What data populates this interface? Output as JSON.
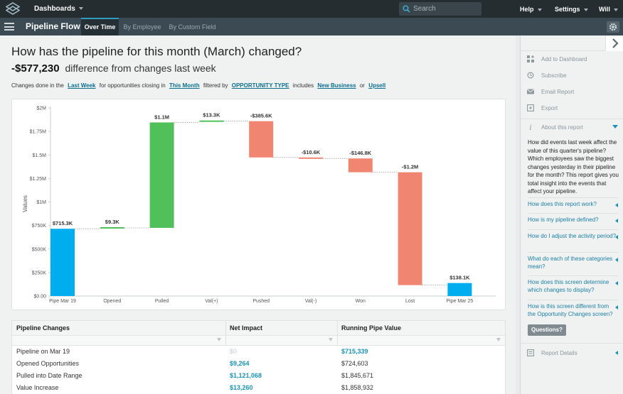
{
  "topbar": {
    "dashboards_label": "Dashboards",
    "search_placeholder": "Search",
    "help_label": "Help",
    "settings_label": "Settings",
    "user_label": "Will",
    "logo_icon": "stacked-diamond-logo"
  },
  "subbar": {
    "app_title": "Pipeline Flow",
    "tabs": [
      {
        "label": "Over Time",
        "active": true
      },
      {
        "label": "By Employee",
        "active": false
      },
      {
        "label": "By Custom Field",
        "active": false
      }
    ]
  },
  "report": {
    "question": "How has the pipeline for this month (March) changed?",
    "difference_value": "-$577,230",
    "difference_text": "difference from changes last week",
    "filters": {
      "t1": "Changes done in the",
      "l1": "Last Week",
      "t2": "for opportunities closing in",
      "l2": "This Month",
      "t3": "filtered by",
      "l3": "OPPORTUNITY TYPE",
      "t4": "includes",
      "l4": "New Business",
      "t5": "or",
      "l5": "Upsell"
    }
  },
  "chart_data": {
    "type": "bar",
    "subtype": "waterfall",
    "title": "",
    "xlabel": "",
    "ylabel": "Values",
    "ylim": [
      0,
      2000000
    ],
    "yticks": [
      "$0.00",
      "$250K",
      "$500K",
      "$750K",
      "$1M",
      "$1.25M",
      "$1.5M",
      "$1.75M",
      "$2M"
    ],
    "categories": [
      "Pipe Mar 19",
      "Opened",
      "Pulled",
      "Val(+)",
      "Pushed",
      "Val(-)",
      "Won",
      "Lost",
      "Pipe Mar 25"
    ],
    "values": [
      715339,
      9264,
      1121068,
      13260,
      -385600,
      -10600,
      -146800,
      -1200000,
      138100
    ],
    "data_labels": [
      "$715.3K",
      "$9.3K",
      "$1.1M",
      "$13.3K",
      "-$385.6K",
      "-$10.6K",
      "-$146.8K",
      "-$1.2M",
      "$138.1K"
    ],
    "kinds": [
      "total",
      "increase",
      "increase",
      "increase",
      "decrease",
      "decrease",
      "decrease",
      "decrease",
      "total"
    ],
    "colors": {
      "total": "#00aeef",
      "increase": "#52c05a",
      "decrease": "#f08672"
    },
    "grid": false,
    "legend": "none"
  },
  "table": {
    "headers": [
      "Pipeline Changes",
      "Net Impact",
      "Running Pipe Value"
    ],
    "rows": [
      {
        "label": "Pipeline on Mar 19",
        "impact": "$0",
        "running": "$715,339",
        "impact_style": "muted",
        "running_style": "val"
      },
      {
        "label": "Opened Opportunities",
        "impact": "$9,264",
        "running": "$724,603",
        "impact_style": "val",
        "running_style": "plain"
      },
      {
        "label": "Pulled into Date Range",
        "impact": "$1,121,068",
        "running": "$1,845,671",
        "impact_style": "val",
        "running_style": "plain"
      },
      {
        "label": "Value Increase",
        "impact": "$13,260",
        "running": "$1,858,932",
        "impact_style": "val",
        "running_style": "plain"
      }
    ]
  },
  "sidebar": {
    "actions": [
      {
        "label": "Add to Dashboard",
        "icon": "add-dashboard-icon"
      },
      {
        "label": "Subscribe",
        "icon": "history-clock-icon"
      },
      {
        "label": "Email Report",
        "icon": "envelope-icon"
      },
      {
        "label": "Export",
        "icon": "export-icon"
      }
    ],
    "about_label": "About this report",
    "about_text": "How did events last week affect the value of this quarter's pipeline? Which employees saw the biggest changes yesterday in their pipeline for the month? This report gives you total insight into the events that affect your pipeline.",
    "faqs": [
      "How does this report work?",
      "How is my pipeline defined?",
      "How do I adjust the activity period?",
      "What do each of these categories mean?",
      "How does this screen determine which changes to display?",
      "How is this screen different from the Opportunity Changes screen?"
    ],
    "questions_button": "Questions?",
    "report_details_label": "Report Details"
  }
}
